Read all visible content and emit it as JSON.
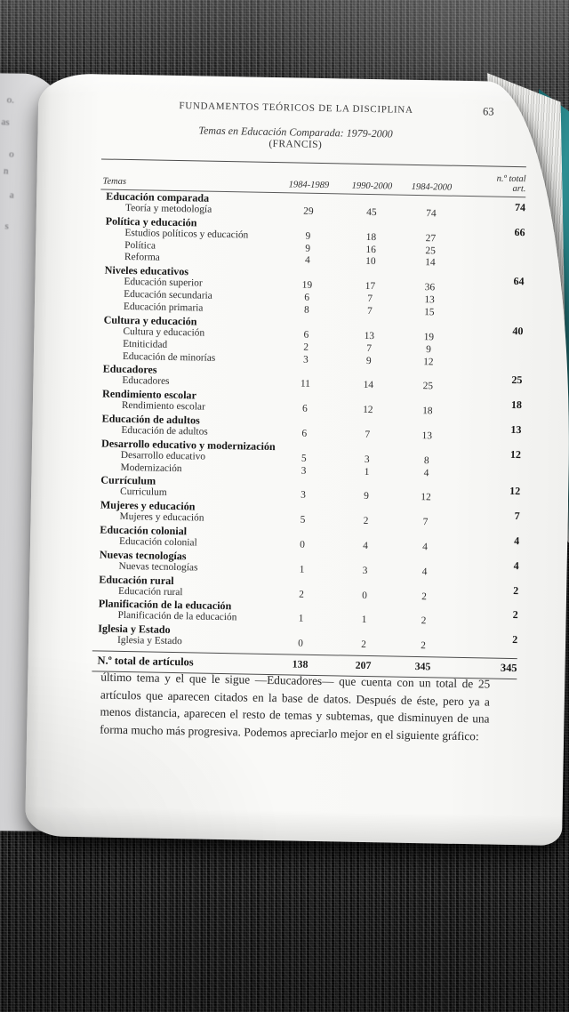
{
  "page": {
    "running_head": "FUNDAMENTOS TEÓRICOS DE LA DISCIPLINA",
    "page_number": "63",
    "table_title_line1": "Temas en Educación Comparada: 1979-2000",
    "table_title_line2": "(FRANCIS)"
  },
  "table": {
    "col_headers": {
      "temas": "Temas",
      "y1": "1984-1989",
      "y2": "1990-2000",
      "y3": "1984-2000",
      "total_l1": "n.º total",
      "total_l2": "art."
    },
    "groups": [
      {
        "label": "Educación comparada",
        "total": "74",
        "rows": [
          {
            "label": "Teoría y metodología",
            "values": [
              "29",
              "45",
              "74"
            ]
          }
        ]
      },
      {
        "label": "Política y educación",
        "total": "66",
        "rows": [
          {
            "label": "Estudios políticos y educación",
            "values": [
              "9",
              "18",
              "27"
            ]
          },
          {
            "label": "Política",
            "values": [
              "9",
              "16",
              "25"
            ]
          },
          {
            "label": "Reforma",
            "values": [
              "4",
              "10",
              "14"
            ]
          }
        ]
      },
      {
        "label": "Niveles educativos",
        "total": "64",
        "rows": [
          {
            "label": "Educación superior",
            "values": [
              "19",
              "17",
              "36"
            ]
          },
          {
            "label": "Educación secundaria",
            "values": [
              "6",
              "7",
              "13"
            ]
          },
          {
            "label": "Educación primaria",
            "values": [
              "8",
              "7",
              "15"
            ]
          }
        ]
      },
      {
        "label": "Cultura y educación",
        "total": "40",
        "rows": [
          {
            "label": "Cultura y educación",
            "values": [
              "6",
              "13",
              "19"
            ]
          },
          {
            "label": "Etniticidad",
            "values": [
              "2",
              "7",
              "9"
            ]
          },
          {
            "label": "Educación de minorías",
            "values": [
              "3",
              "9",
              "12"
            ]
          }
        ]
      },
      {
        "label": "Educadores",
        "total": "25",
        "rows": [
          {
            "label": "Educadores",
            "values": [
              "11",
              "14",
              "25"
            ]
          }
        ]
      },
      {
        "label": "Rendimiento escolar",
        "total": "18",
        "rows": [
          {
            "label": "Rendimiento escolar",
            "values": [
              "6",
              "12",
              "18"
            ]
          }
        ]
      },
      {
        "label": "Educación de adultos",
        "total": "13",
        "rows": [
          {
            "label": "Educación de adultos",
            "values": [
              "6",
              "7",
              "13"
            ]
          }
        ]
      },
      {
        "label": "Desarrollo educativo y modernización",
        "total": "12",
        "rows": [
          {
            "label": "Desarrollo educativo",
            "values": [
              "5",
              "3",
              "8"
            ]
          },
          {
            "label": "Modernización",
            "values": [
              "3",
              "1",
              "4"
            ]
          }
        ]
      },
      {
        "label": "Currículum",
        "total": "12",
        "rows": [
          {
            "label": "Curriculum",
            "values": [
              "3",
              "9",
              "12"
            ]
          }
        ]
      },
      {
        "label": "Mujeres y educación",
        "total": "7",
        "rows": [
          {
            "label": "Mujeres y educación",
            "values": [
              "5",
              "2",
              "7"
            ]
          }
        ]
      },
      {
        "label": "Educación colonial",
        "total": "4",
        "rows": [
          {
            "label": "Educación colonial",
            "values": [
              "0",
              "4",
              "4"
            ]
          }
        ]
      },
      {
        "label": "Nuevas tecnologías",
        "total": "4",
        "rows": [
          {
            "label": "Nuevas tecnologías",
            "values": [
              "1",
              "3",
              "4"
            ]
          }
        ]
      },
      {
        "label": "Educación rural",
        "total": "2",
        "rows": [
          {
            "label": "Educación rural",
            "values": [
              "2",
              "0",
              "2"
            ]
          }
        ]
      },
      {
        "label": "Planificación de la educación",
        "total": "2",
        "rows": [
          {
            "label": "Planificación de la educación",
            "values": [
              "1",
              "1",
              "2"
            ]
          }
        ]
      },
      {
        "label": "Iglesia y Estado",
        "total": "2",
        "rows": [
          {
            "label": "Iglesia y Estado",
            "values": [
              "0",
              "2",
              "2"
            ]
          }
        ]
      }
    ],
    "total_row": {
      "label": "N.º total de artículos",
      "values": [
        "138",
        "207",
        "345",
        "345"
      ]
    }
  },
  "paragraph": "último tema y el que le sigue —Educadores— que cuenta con un total de 25 artículos que aparecen citados en la base de datos. Después de éste, pero ya a menos distancia, aparecen el resto de temas y subtemas, que disminuyen de una forma mucho más progresiva. Podemos apreciarlo mejor en el siguiente gráfico:",
  "left_page_fragments": [
    "o.",
    "as",
    "o",
    "n",
    "a",
    "s"
  ],
  "colors": {
    "cover_teal": "#2f9094",
    "page_white": "#f8f8f6",
    "fabric_dark": "#191919"
  }
}
